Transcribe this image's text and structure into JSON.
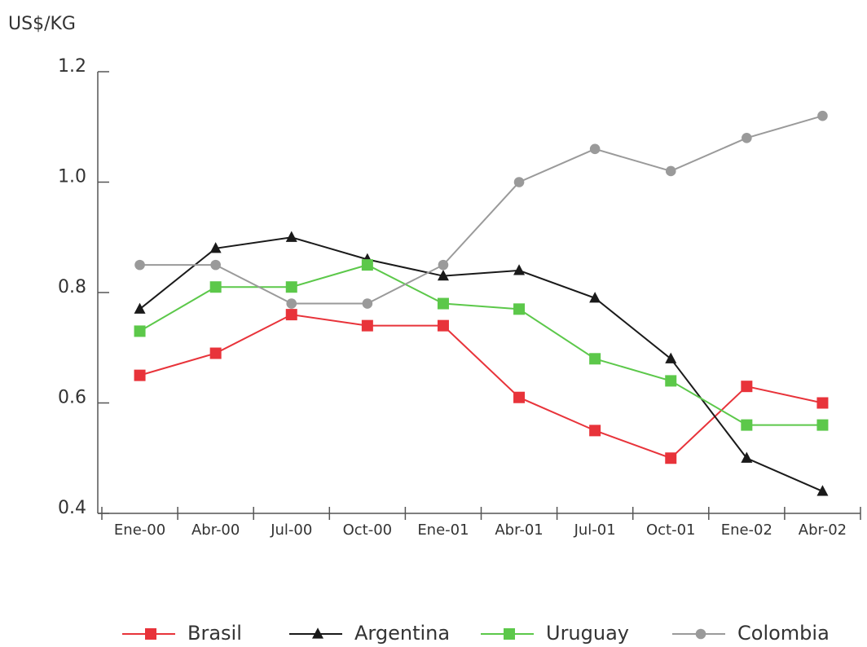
{
  "chart_data": {
    "type": "line",
    "y_label": "US$/KG",
    "categories": [
      "Ene-00",
      "Abr-00",
      "Jul-00",
      "Oct-00",
      "Ene-01",
      "Abr-01",
      "Jul-01",
      "Oct-01",
      "Ene-02",
      "Abr-02"
    ],
    "series": [
      {
        "name": "Brasil",
        "color": "#e8333a",
        "marker": "square",
        "values": [
          0.65,
          0.69,
          0.76,
          0.74,
          0.74,
          0.61,
          0.55,
          0.5,
          0.63,
          0.6
        ]
      },
      {
        "name": "Argentina",
        "color": "#1a1a1a",
        "marker": "triangle",
        "values": [
          0.77,
          0.88,
          0.9,
          0.86,
          0.83,
          0.84,
          0.79,
          0.68,
          0.5,
          0.44
        ]
      },
      {
        "name": "Uruguay",
        "color": "#5cc84a",
        "marker": "square",
        "values": [
          0.73,
          0.81,
          0.81,
          0.85,
          0.78,
          0.77,
          0.68,
          0.64,
          0.56,
          0.56
        ]
      },
      {
        "name": "Colombia",
        "color": "#9a9a9a",
        "marker": "circle",
        "values": [
          0.85,
          0.85,
          0.78,
          0.78,
          0.85,
          1.0,
          1.06,
          1.02,
          1.08,
          1.12
        ]
      }
    ],
    "ylim": [
      0.4,
      1.2
    ],
    "yticks": [
      0.4,
      0.6,
      0.8,
      {
        "value": 1,
        "label": "1.0"
      },
      1.2
    ],
    "legend": "bottom"
  }
}
